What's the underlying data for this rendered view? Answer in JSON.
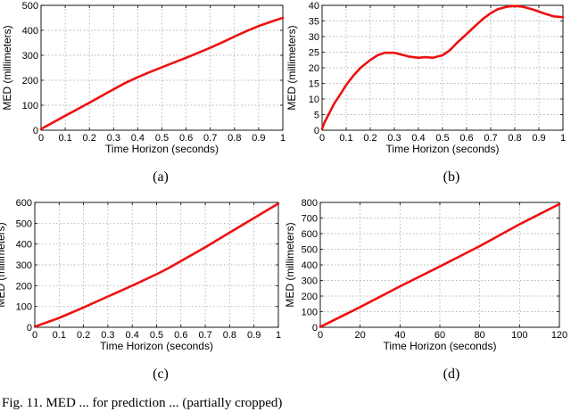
{
  "figure_caption": "Fig. 11. MED ... for prediction ... (partially cropped)",
  "line_color": "#ee1111",
  "chart_data": [
    {
      "type": "line",
      "caption": "(a)",
      "xlabel": "Time Horizon (seconds)",
      "ylabel": "MED (millimeters)",
      "xlim": [
        0,
        1
      ],
      "ylim": [
        0,
        500
      ],
      "xticks": [
        0,
        0.1,
        0.2,
        0.3,
        0.4,
        0.5,
        0.6,
        0.7,
        0.8,
        0.9,
        1
      ],
      "xtick_labels": [
        "0",
        "0.1",
        "0.2",
        "0.3",
        "0.4",
        "0.5",
        "0.6",
        "0.7",
        "0.8",
        "0.9",
        "1"
      ],
      "yticks": [
        0,
        100,
        200,
        300,
        400,
        500
      ],
      "grid": true,
      "series": [
        {
          "x": [
            0,
            0.05,
            0.1,
            0.15,
            0.2,
            0.25,
            0.3,
            0.35,
            0.4,
            0.45,
            0.5,
            0.55,
            0.6,
            0.65,
            0.7,
            0.75,
            0.8,
            0.85,
            0.9,
            0.95,
            1.0
          ],
          "y": [
            5,
            31,
            58,
            84,
            110,
            137,
            164,
            190,
            212,
            233,
            252,
            271,
            290,
            310,
            330,
            352,
            375,
            397,
            417,
            434,
            450
          ]
        }
      ]
    },
    {
      "type": "line",
      "caption": "(b)",
      "xlabel": "Time Horizon (seconds)",
      "ylabel": "MED (millimeters)",
      "xlim": [
        0,
        1
      ],
      "ylim": [
        0,
        40
      ],
      "xticks": [
        0,
        0.1,
        0.2,
        0.3,
        0.4,
        0.5,
        0.6,
        0.7,
        0.8,
        0.9,
        1
      ],
      "xtick_labels": [
        "0",
        "0.1",
        "0.2",
        "0.3",
        "0.4",
        "0.5",
        "0.6",
        "0.7",
        "0.8",
        "0.9",
        "1"
      ],
      "yticks": [
        0,
        5,
        10,
        15,
        20,
        25,
        30,
        35,
        40
      ],
      "grid": true,
      "series": [
        {
          "x": [
            0,
            0.01,
            0.03,
            0.05,
            0.08,
            0.1,
            0.13,
            0.16,
            0.2,
            0.23,
            0.26,
            0.3,
            0.33,
            0.36,
            0.4,
            0.43,
            0.46,
            0.5,
            0.53,
            0.56,
            0.6,
            0.63,
            0.67,
            0.7,
            0.73,
            0.77,
            0.8,
            0.83,
            0.87,
            0.9,
            0.93,
            0.96,
            1.0
          ],
          "y": [
            0.5,
            2.5,
            5.5,
            8.5,
            12,
            14.5,
            17.5,
            20,
            22.5,
            24,
            24.8,
            24.8,
            24.2,
            23.6,
            23.2,
            23.4,
            23.2,
            24,
            25.6,
            28,
            30.8,
            33,
            35.8,
            37.5,
            38.8,
            39.6,
            39.8,
            39.6,
            38.8,
            38,
            37.2,
            36.5,
            36.2
          ]
        }
      ]
    },
    {
      "type": "line",
      "caption": "(c)",
      "xlabel": "Time Horizon (seconds)",
      "ylabel": "MED (millimeters)",
      "xlim": [
        0,
        1
      ],
      "ylim": [
        0,
        600
      ],
      "xticks": [
        0,
        0.1,
        0.2,
        0.3,
        0.4,
        0.5,
        0.6,
        0.7,
        0.8,
        0.9,
        1
      ],
      "xtick_labels": [
        "0",
        "0.1",
        "0.2",
        "0.3",
        "0.4",
        "0.5",
        "0.6",
        "0.7",
        "0.8",
        "0.9",
        "1"
      ],
      "yticks": [
        0,
        100,
        200,
        300,
        400,
        500,
        600
      ],
      "grid": true,
      "series": [
        {
          "x": [
            0,
            0.1,
            0.2,
            0.3,
            0.4,
            0.5,
            0.55,
            0.6,
            0.7,
            0.8,
            0.9,
            1.0
          ],
          "y": [
            3,
            45,
            95,
            148,
            200,
            255,
            285,
            318,
            385,
            455,
            525,
            595
          ]
        }
      ]
    },
    {
      "type": "line",
      "caption": "(d)",
      "xlabel": "Time Horizon (seconds)",
      "ylabel": "MED (millimeters)",
      "xlim": [
        0,
        120
      ],
      "ylim": [
        0,
        800
      ],
      "xticks": [
        0,
        20,
        40,
        60,
        80,
        100,
        120
      ],
      "xtick_labels": [
        "0",
        "20",
        "40",
        "60",
        "80",
        "100",
        "120"
      ],
      "yticks": [
        0,
        100,
        200,
        300,
        400,
        500,
        600,
        700,
        800
      ],
      "grid": true,
      "series": [
        {
          "x": [
            0,
            20,
            40,
            60,
            80,
            100,
            120
          ],
          "y": [
            2,
            130,
            262,
            390,
            520,
            660,
            790
          ]
        }
      ]
    }
  ]
}
